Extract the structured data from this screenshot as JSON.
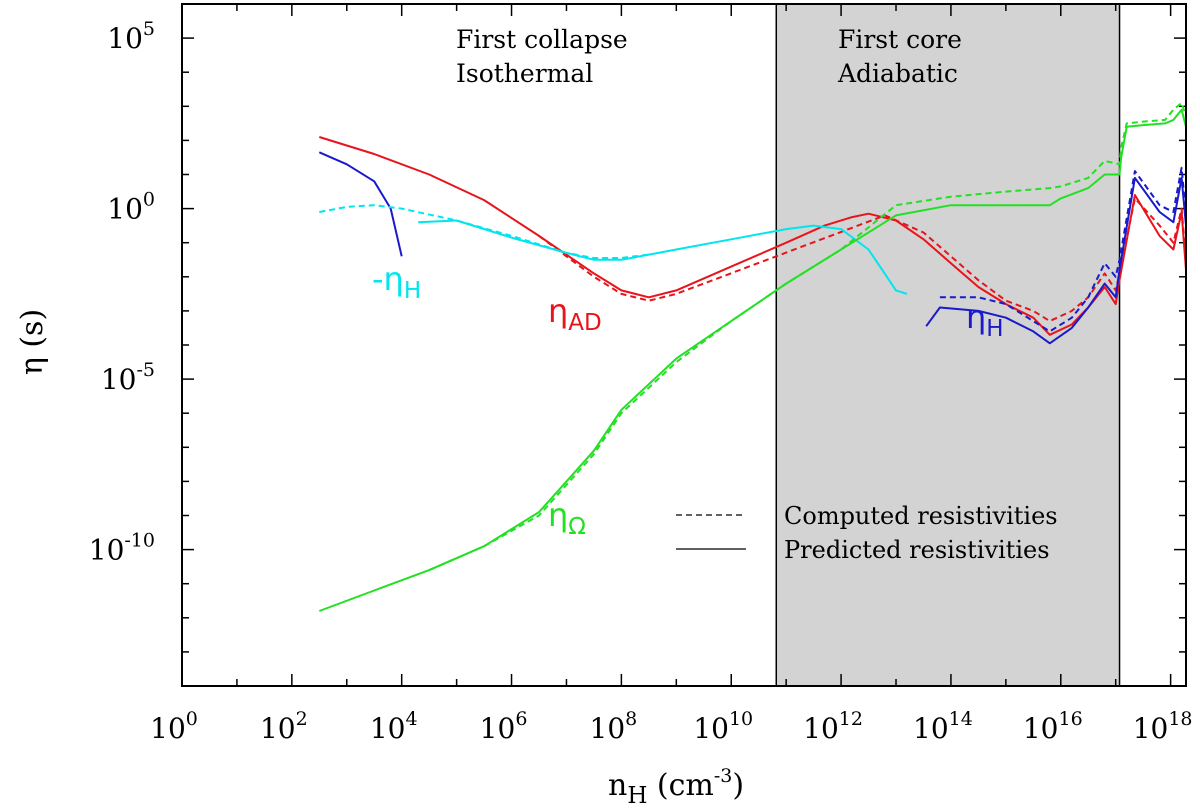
{
  "chart_data": {
    "type": "line",
    "x_scale": "log",
    "y_scale": "log",
    "xlim_log10": [
      0,
      18.28
    ],
    "ylim_log10": [
      -14,
      6
    ],
    "x_ticks": [
      {
        "base": "10",
        "exp": "0"
      },
      {
        "base": "10",
        "exp": "2"
      },
      {
        "base": "10",
        "exp": "4"
      },
      {
        "base": "10",
        "exp": "6"
      },
      {
        "base": "10",
        "exp": "8"
      },
      {
        "base": "10",
        "exp": "10"
      },
      {
        "base": "10",
        "exp": "12"
      },
      {
        "base": "10",
        "exp": "14"
      },
      {
        "base": "10",
        "exp": "16"
      },
      {
        "base": "10",
        "exp": "18"
      }
    ],
    "y_ticks": [
      {
        "base": "10",
        "exp": "5"
      },
      {
        "base": "10",
        "exp": "0"
      },
      {
        "base": "10",
        "exp": "-5"
      },
      {
        "base": "10",
        "exp": "-10"
      }
    ],
    "xlabel": {
      "main": "n",
      "sub": "H",
      "unit": " (cm",
      "sup": "-3",
      "close": ")"
    },
    "ylabel": "η (s)",
    "shaded_region": {
      "x_log10": [
        10.82,
        17.07
      ],
      "color": "#d3d3d3"
    },
    "region_labels": [
      {
        "lines": [
          "First collapse",
          "Isothermal"
        ]
      },
      {
        "lines": [
          "First core",
          "Adiabatic"
        ]
      }
    ],
    "legend": {
      "position": "bottom-center",
      "items": [
        {
          "label": "Computed resistivities",
          "dash": "dashed"
        },
        {
          "label": "Predicted resistivities",
          "dash": "solid"
        }
      ]
    },
    "series_labels": [
      {
        "text": "-η",
        "sub": "H",
        "color": "#00e5ee"
      },
      {
        "text": "η",
        "sub": "AD",
        "color": "#e8141b"
      },
      {
        "text": "η",
        "sub": "H",
        "color": "#1a1acc"
      },
      {
        "text": "η",
        "sub": "Ω",
        "color": "#22e022"
      }
    ],
    "series": [
      {
        "name": "η_AD",
        "color": "#e8141b",
        "dash": "solid",
        "points": [
          [
            2.5,
            2.1
          ],
          [
            3.5,
            1.6
          ],
          [
            4.5,
            1.0
          ],
          [
            5.5,
            0.25
          ],
          [
            6.5,
            -0.8
          ],
          [
            7.5,
            -1.9
          ],
          [
            8.0,
            -2.4
          ],
          [
            8.5,
            -2.6
          ],
          [
            9.0,
            -2.4
          ],
          [
            10.0,
            -1.7
          ],
          [
            11.0,
            -1.0
          ],
          [
            11.7,
            -0.5
          ],
          [
            12.2,
            -0.25
          ],
          [
            12.5,
            -0.15
          ],
          [
            13.0,
            -0.35
          ],
          [
            13.5,
            -0.9
          ],
          [
            14.0,
            -1.6
          ],
          [
            14.5,
            -2.3
          ],
          [
            15.0,
            -2.8
          ],
          [
            15.5,
            -3.2
          ],
          [
            15.8,
            -3.7
          ],
          [
            16.2,
            -3.4
          ],
          [
            16.5,
            -2.9
          ],
          [
            16.8,
            -2.3
          ],
          [
            17.0,
            -2.8
          ],
          [
            17.07,
            -2.1
          ],
          [
            17.35,
            0.4
          ],
          [
            17.8,
            -0.8
          ],
          [
            18.05,
            -1.2
          ],
          [
            18.2,
            -0.1
          ],
          [
            18.28,
            -1.8
          ]
        ]
      },
      {
        "name": "η_AD",
        "color": "#e8141b",
        "dash": "dashed",
        "points": [
          [
            6.5,
            -0.8
          ],
          [
            7.5,
            -2.0
          ],
          [
            8.0,
            -2.5
          ],
          [
            8.5,
            -2.7
          ],
          [
            9.0,
            -2.5
          ],
          [
            12.8,
            -0.2
          ],
          [
            13.5,
            -0.7
          ],
          [
            14.0,
            -1.4
          ],
          [
            14.5,
            -2.1
          ],
          [
            15.0,
            -2.7
          ],
          [
            15.5,
            -3.0
          ],
          [
            15.8,
            -3.3
          ],
          [
            16.2,
            -3.0
          ],
          [
            16.5,
            -2.6
          ],
          [
            16.8,
            -1.9
          ],
          [
            17.0,
            -2.4
          ],
          [
            17.07,
            -1.9
          ],
          [
            17.35,
            0.3
          ],
          [
            17.8,
            -0.5
          ],
          [
            18.05,
            -1.0
          ],
          [
            18.2,
            0.0
          ],
          [
            18.28,
            -1.5
          ]
        ]
      },
      {
        "name": "-η_H",
        "color": "#1a1acc",
        "dash": "solid",
        "points": [
          [
            2.5,
            1.65
          ],
          [
            3.0,
            1.3
          ],
          [
            3.5,
            0.8
          ],
          [
            3.8,
            0.0
          ],
          [
            4.0,
            -1.4
          ]
        ]
      },
      {
        "name": "η_H",
        "color": "#1a1acc",
        "dash": "solid",
        "points": [
          [
            13.55,
            -3.45
          ],
          [
            13.8,
            -2.9
          ],
          [
            14.5,
            -3.0
          ],
          [
            15.0,
            -3.2
          ],
          [
            15.5,
            -3.6
          ],
          [
            15.8,
            -3.95
          ],
          [
            16.2,
            -3.5
          ],
          [
            16.5,
            -2.9
          ],
          [
            16.8,
            -2.2
          ],
          [
            17.0,
            -2.6
          ],
          [
            17.07,
            -1.8
          ],
          [
            17.35,
            0.9
          ],
          [
            17.8,
            -0.1
          ],
          [
            18.05,
            -0.4
          ],
          [
            18.2,
            0.9
          ],
          [
            18.28,
            -0.5
          ]
        ]
      },
      {
        "name": "η_H",
        "color": "#1a1acc",
        "dash": "dashed",
        "points": [
          [
            13.8,
            -2.6
          ],
          [
            14.5,
            -2.6
          ],
          [
            15.0,
            -2.8
          ],
          [
            15.5,
            -3.3
          ],
          [
            15.8,
            -3.6
          ],
          [
            16.2,
            -3.2
          ],
          [
            16.5,
            -2.6
          ],
          [
            16.8,
            -1.6
          ],
          [
            17.0,
            -2.0
          ],
          [
            17.07,
            -1.5
          ],
          [
            17.35,
            1.1
          ],
          [
            17.8,
            0.1
          ],
          [
            18.05,
            -0.1
          ],
          [
            18.2,
            1.2
          ],
          [
            18.28,
            -0.2
          ]
        ]
      },
      {
        "name": "-η_H",
        "color": "#00e5ee",
        "dash": "dashed",
        "points": [
          [
            2.5,
            -0.1
          ],
          [
            3.0,
            0.05
          ],
          [
            3.5,
            0.1
          ],
          [
            4.0,
            0.0
          ],
          [
            5.0,
            -0.35
          ],
          [
            6.0,
            -0.8
          ],
          [
            7.0,
            -1.3
          ],
          [
            7.5,
            -1.45
          ],
          [
            8.0,
            -1.45
          ],
          [
            8.5,
            -1.35
          ]
        ]
      },
      {
        "name": "-η_H",
        "color": "#00e5ee",
        "dash": "solid",
        "points": [
          [
            4.3,
            -0.4
          ],
          [
            5.0,
            -0.35
          ],
          [
            6.0,
            -0.85
          ],
          [
            7.0,
            -1.3
          ],
          [
            7.5,
            -1.5
          ],
          [
            8.0,
            -1.5
          ],
          [
            9.0,
            -1.2
          ],
          [
            10.0,
            -0.9
          ],
          [
            11.0,
            -0.6
          ],
          [
            11.5,
            -0.5
          ],
          [
            12.0,
            -0.6
          ],
          [
            12.5,
            -1.2
          ],
          [
            13.0,
            -2.4
          ],
          [
            13.2,
            -2.5
          ]
        ]
      },
      {
        "name": "η_Ω",
        "color": "#22e022",
        "dash": "solid",
        "points": [
          [
            2.5,
            -11.8
          ],
          [
            3.5,
            -11.2
          ],
          [
            4.5,
            -10.6
          ],
          [
            5.5,
            -9.9
          ],
          [
            6.5,
            -8.9
          ],
          [
            7.0,
            -8.0
          ],
          [
            7.5,
            -7.1
          ],
          [
            8.0,
            -5.9
          ],
          [
            9.0,
            -4.4
          ],
          [
            10.0,
            -3.3
          ],
          [
            11.0,
            -2.2
          ],
          [
            12.0,
            -1.2
          ],
          [
            13.0,
            -0.2
          ],
          [
            14.0,
            0.1
          ],
          [
            15.0,
            0.1
          ],
          [
            15.8,
            0.1
          ],
          [
            16.0,
            0.3
          ],
          [
            16.5,
            0.6
          ],
          [
            16.8,
            1.0
          ],
          [
            17.07,
            1.0
          ],
          [
            17.1,
            1.5
          ],
          [
            17.2,
            2.4
          ],
          [
            17.5,
            2.45
          ],
          [
            17.9,
            2.5
          ],
          [
            18.05,
            2.6
          ],
          [
            18.2,
            2.9
          ],
          [
            18.28,
            2.4
          ]
        ]
      },
      {
        "name": "η_Ω",
        "color": "#22e022",
        "dash": "dashed",
        "points": [
          [
            4.5,
            -10.6
          ],
          [
            5.5,
            -9.9
          ],
          [
            6.5,
            -9.0
          ],
          [
            7.0,
            -8.1
          ],
          [
            7.5,
            -7.2
          ],
          [
            8.0,
            -6.0
          ],
          [
            9.0,
            -4.5
          ],
          [
            10.0,
            -3.3
          ],
          [
            11.0,
            -2.2
          ],
          [
            12.0,
            -1.2
          ],
          [
            13.0,
            0.1
          ],
          [
            14.0,
            0.35
          ],
          [
            15.0,
            0.5
          ],
          [
            15.8,
            0.6
          ],
          [
            16.0,
            0.65
          ],
          [
            16.5,
            0.9
          ],
          [
            16.8,
            1.4
          ],
          [
            17.07,
            1.3
          ],
          [
            17.1,
            1.8
          ],
          [
            17.2,
            2.5
          ],
          [
            17.5,
            2.55
          ],
          [
            17.9,
            2.6
          ],
          [
            18.05,
            2.9
          ],
          [
            18.2,
            3.1
          ],
          [
            18.28,
            2.7
          ]
        ]
      }
    ]
  }
}
